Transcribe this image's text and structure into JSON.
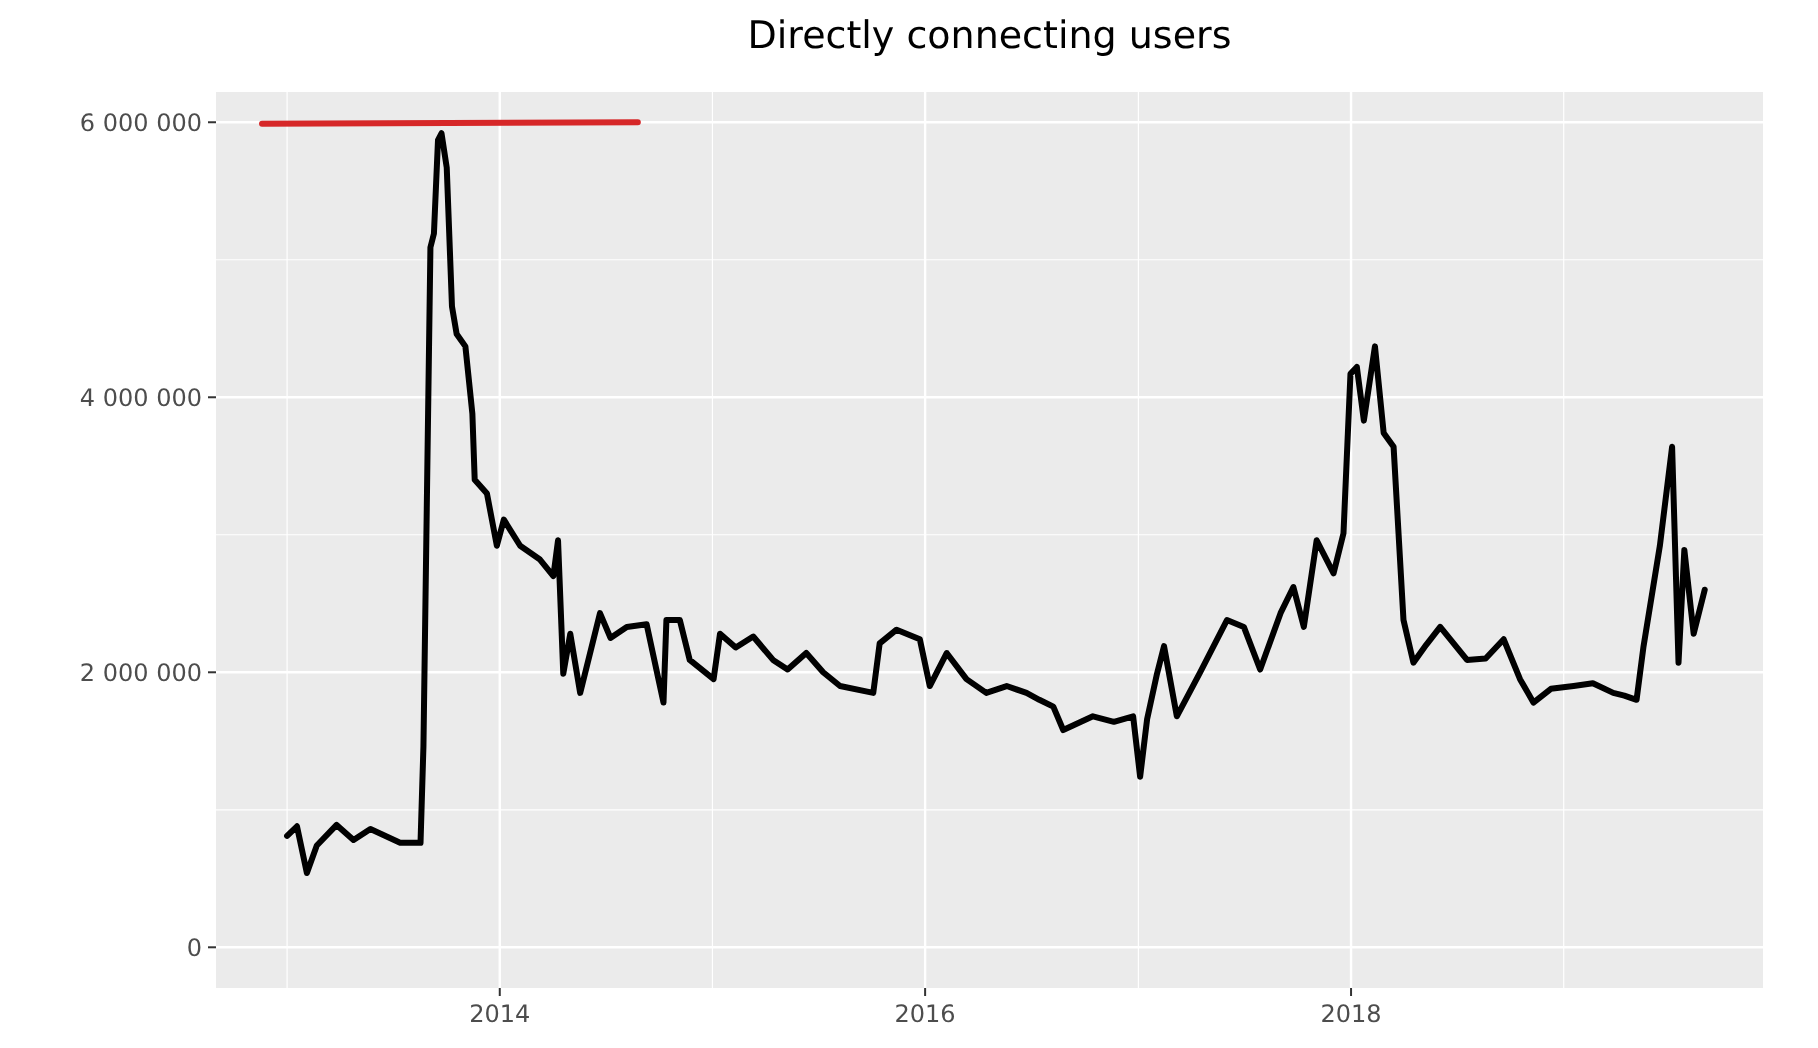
{
  "chart_data": {
    "type": "line",
    "title": "Directly connecting users",
    "xlim": [
      "2012-09-01",
      "2019-12-09"
    ],
    "xticks": [
      {
        "value": "2013",
        "label": null
      },
      "2014",
      {
        "value": "2015",
        "label": null
      },
      "2016",
      {
        "value": "2017",
        "label": null
      },
      "2018",
      {
        "value": "2019",
        "label": null
      }
    ],
    "ylim": [
      -296000,
      6220000
    ],
    "yticks": [
      {
        "value": 0,
        "label": "0"
      },
      {
        "value": 1000000,
        "label": null
      },
      {
        "value": 2000000,
        "label": "2 000 000"
      },
      {
        "value": 3000000,
        "label": null
      },
      {
        "value": 4000000,
        "label": "4 000 000"
      },
      {
        "value": 5000000,
        "label": null
      },
      {
        "value": 6000000,
        "label": "6 000 000"
      }
    ],
    "grid": true,
    "series": [
      {
        "color": "#000000",
        "x": [
          "2013-01-01",
          "2013-01-18",
          "2013-02-04",
          "2013-02-21",
          "2013-03-27",
          "2013-04-25",
          "2013-05-24",
          "2013-07-14",
          "2013-08-18",
          "2013-08-23",
          "2013-09-04",
          "2013-09-10",
          "2013-09-17",
          "2013-09-23",
          "2013-10-02",
          "2013-10-11",
          "2013-10-19",
          "2013-11-03",
          "2013-11-15",
          "2013-11-19",
          "2013-12-10",
          "2013-12-27",
          "2014-01-08",
          "2014-02-05",
          "2014-03-11",
          "2014-04-03",
          "2014-04-11",
          "2014-04-20",
          "2014-05-02",
          "2014-05-19",
          "2014-06-22",
          "2014-07-10",
          "2014-08-07",
          "2014-09-10",
          "2014-10-09",
          "2014-10-14",
          "2014-11-06",
          "2014-11-23",
          "2015-01-03",
          "2015-01-14",
          "2015-02-10",
          "2015-03-12",
          "2015-04-15",
          "2015-05-10",
          "2015-06-11",
          "2015-07-10",
          "2015-08-08",
          "2015-10-04",
          "2015-10-15",
          "2015-11-13",
          "2015-12-23",
          "2016-01-09",
          "2016-02-07",
          "2016-03-12",
          "2016-04-15",
          "2016-05-20",
          "2016-06-23",
          "2016-07-15",
          "2016-08-08",
          "2016-08-25",
          "2016-10-15",
          "2016-11-20",
          "2016-12-23",
          "2017-01-04",
          "2017-01-16",
          "2017-02-02",
          "2017-02-14",
          "2017-03-08",
          "2017-04-17",
          "2017-06-02",
          "2017-07-01",
          "2017-07-29",
          "2017-09-02",
          "2017-09-24",
          "2017-10-12",
          "2017-11-03",
          "2017-12-02",
          "2017-12-19",
          "2017-12-31",
          "2018-01-11",
          "2018-01-23",
          "2018-02-11",
          "2018-02-26",
          "2018-03-15",
          "2018-04-01",
          "2018-04-18",
          "2018-05-10",
          "2018-06-03",
          "2018-07-19",
          "2018-08-20",
          "2018-09-20",
          "2018-10-18",
          "2018-11-10",
          "2018-12-10",
          "2019-01-18",
          "2019-02-20",
          "2019-03-27",
          "2019-04-15",
          "2019-05-06",
          "2019-05-18",
          "2019-06-15",
          "2019-07-06",
          "2019-07-17",
          "2019-07-27",
          "2019-08-12",
          "2019-08-31"
        ],
        "values": [
          810000,
          880000,
          540000,
          740000,
          890000,
          780000,
          860000,
          760000,
          760000,
          1460000,
          5090000,
          5190000,
          5870000,
          5920000,
          5670000,
          4660000,
          4460000,
          4370000,
          3880000,
          3400000,
          3300000,
          2920000,
          3110000,
          2920000,
          2820000,
          2700000,
          2960000,
          1990000,
          2280000,
          1850000,
          2430000,
          2250000,
          2330000,
          2350000,
          1780000,
          2380000,
          2380000,
          2090000,
          1950000,
          2280000,
          2180000,
          2260000,
          2090000,
          2020000,
          2140000,
          2000000,
          1900000,
          1850000,
          2210000,
          2310000,
          2240000,
          1900000,
          2140000,
          1950000,
          1850000,
          1900000,
          1850000,
          1800000,
          1750000,
          1580000,
          1680000,
          1640000,
          1680000,
          1240000,
          1660000,
          1990000,
          2190000,
          1680000,
          2000000,
          2380000,
          2330000,
          2020000,
          2430000,
          2620000,
          2330000,
          2960000,
          2720000,
          3010000,
          4170000,
          4220000,
          3830000,
          4370000,
          3740000,
          3640000,
          2380000,
          2070000,
          2200000,
          2330000,
          2090000,
          2100000,
          2240000,
          1950000,
          1780000,
          1880000,
          1900000,
          1920000,
          1850000,
          1830000,
          1800000,
          2190000,
          2920000,
          3640000,
          2070000,
          2890000,
          2280000,
          2600000
        ]
      },
      {
        "color": "#d62728",
        "x": [
          "2012-11-19",
          "2014-08-26"
        ],
        "values": [
          5990000,
          6000000
        ]
      }
    ]
  }
}
